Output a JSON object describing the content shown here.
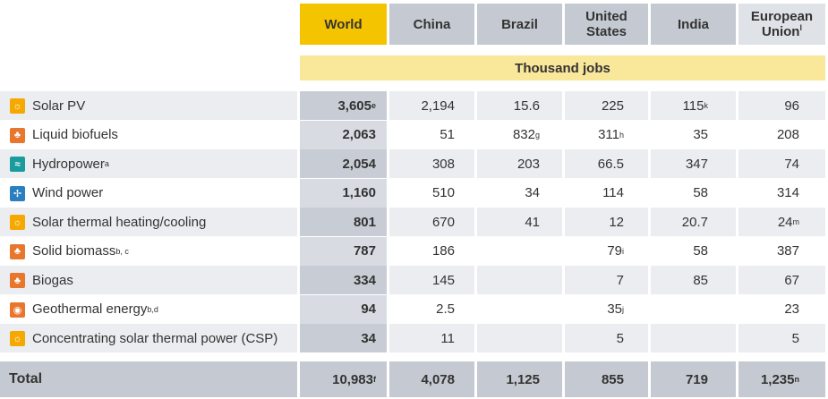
{
  "columns": [
    {
      "key": "world",
      "label": "World"
    },
    {
      "key": "china",
      "label": "China"
    },
    {
      "key": "brazil",
      "label": "Brazil"
    },
    {
      "key": "us",
      "label": "United States",
      "sup": ""
    },
    {
      "key": "india",
      "label": "India"
    },
    {
      "key": "eu",
      "label": "European Union",
      "sup": "l"
    }
  ],
  "units_label": "Thousand jobs",
  "colors": {
    "accent": "#f5c400",
    "solar": "#f5a800",
    "bio": "#e8762d",
    "hydro": "#1a9c9e",
    "wind": "#2a7fc1"
  },
  "rows": [
    {
      "name": "Solar PV",
      "name_sup": "",
      "icon": "sun-icon",
      "icon_color": "#f5a800",
      "glyph": "☼",
      "world": "3,605",
      "world_sup": "e",
      "china": "2,194",
      "china_sup": "",
      "brazil": "15.6",
      "brazil_sup": "",
      "us": "225",
      "us_sup": "",
      "india": "115",
      "india_sup": "k",
      "eu": "96",
      "eu_sup": ""
    },
    {
      "name": "Liquid biofuels",
      "name_sup": "",
      "icon": "leaf-icon",
      "icon_color": "#e8762d",
      "glyph": "♣",
      "world": "2,063",
      "world_sup": "",
      "china": "51",
      "china_sup": "",
      "brazil": "832",
      "brazil_sup": "g",
      "us": "311",
      "us_sup": "h",
      "india": "35",
      "india_sup": "",
      "eu": "208",
      "eu_sup": ""
    },
    {
      "name": "Hydropower",
      "name_sup": "a",
      "icon": "water-wave-icon",
      "icon_color": "#1a9c9e",
      "glyph": "≈",
      "world": "2,054",
      "world_sup": "",
      "china": "308",
      "china_sup": "",
      "brazil": "203",
      "brazil_sup": "",
      "us": "66.5",
      "us_sup": "",
      "india": "347",
      "india_sup": "",
      "eu": "74",
      "eu_sup": ""
    },
    {
      "name": "Wind power",
      "name_sup": "",
      "icon": "wind-turbine-icon",
      "icon_color": "#2a7fc1",
      "glyph": "✢",
      "world": "1,160",
      "world_sup": "",
      "china": "510",
      "china_sup": "",
      "brazil": "34",
      "brazil_sup": "",
      "us": "114",
      "us_sup": "",
      "india": "58",
      "india_sup": "",
      "eu": "314",
      "eu_sup": ""
    },
    {
      "name": "Solar thermal heating/cooling",
      "name_sup": "",
      "icon": "sun-icon",
      "icon_color": "#f5a800",
      "glyph": "☼",
      "world": "801",
      "world_sup": "",
      "china": "670",
      "china_sup": "",
      "brazil": "41",
      "brazil_sup": "",
      "us": "12",
      "us_sup": "",
      "india": "20.7",
      "india_sup": "",
      "eu": "24",
      "eu_sup": "m"
    },
    {
      "name": "Solid biomass",
      "name_sup": "b, c",
      "icon": "leaf-icon",
      "icon_color": "#e8762d",
      "glyph": "♣",
      "world": "787",
      "world_sup": "",
      "china": "186",
      "china_sup": "",
      "brazil": "",
      "brazil_sup": "",
      "us": "79",
      "us_sup": "i",
      "india": "58",
      "india_sup": "",
      "eu": "387",
      "eu_sup": ""
    },
    {
      "name": "Biogas",
      "name_sup": "",
      "icon": "leaf-icon",
      "icon_color": "#e8762d",
      "glyph": "♣",
      "world": "334",
      "world_sup": "",
      "china": "145",
      "china_sup": "",
      "brazil": "",
      "brazil_sup": "",
      "us": "7",
      "us_sup": "",
      "india": "85",
      "india_sup": "",
      "eu": "67",
      "eu_sup": ""
    },
    {
      "name": "Geothermal energy",
      "name_sup": "b,d",
      "icon": "geothermal-icon",
      "icon_color": "#e8762d",
      "glyph": "◉",
      "world": "94",
      "world_sup": "",
      "china": "2.5",
      "china_sup": "",
      "brazil": "",
      "brazil_sup": "",
      "us": "35",
      "us_sup": "j",
      "india": "",
      "india_sup": "",
      "eu": "23",
      "eu_sup": ""
    },
    {
      "name": "Concentrating solar thermal power (CSP)",
      "name_sup": "",
      "icon": "sun-icon",
      "icon_color": "#f5a800",
      "glyph": "☼",
      "world": "34",
      "world_sup": "",
      "china": "11",
      "china_sup": "",
      "brazil": "",
      "brazil_sup": "",
      "us": "5",
      "us_sup": "",
      "india": "",
      "india_sup": "",
      "eu": "5",
      "eu_sup": ""
    }
  ],
  "total": {
    "label": "Total",
    "world": "10,983",
    "world_sup": "f",
    "china": "4,078",
    "china_sup": "",
    "brazil": "1,125",
    "brazil_sup": "",
    "us": "855",
    "us_sup": "",
    "india": "719",
    "india_sup": "",
    "eu": "1,235",
    "eu_sup": "n"
  }
}
